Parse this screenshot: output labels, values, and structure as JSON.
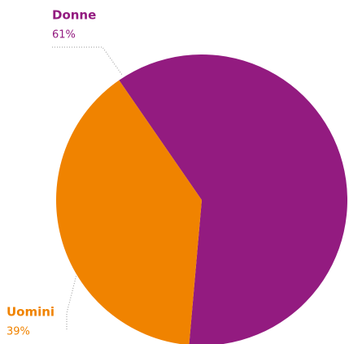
{
  "chart_data": {
    "type": "pie",
    "categories": [
      "Donne",
      "Uomini"
    ],
    "values": [
      61,
      39
    ],
    "value_labels": [
      "61%",
      "39%"
    ],
    "colors": [
      "#931b80",
      "#f08300"
    ]
  }
}
